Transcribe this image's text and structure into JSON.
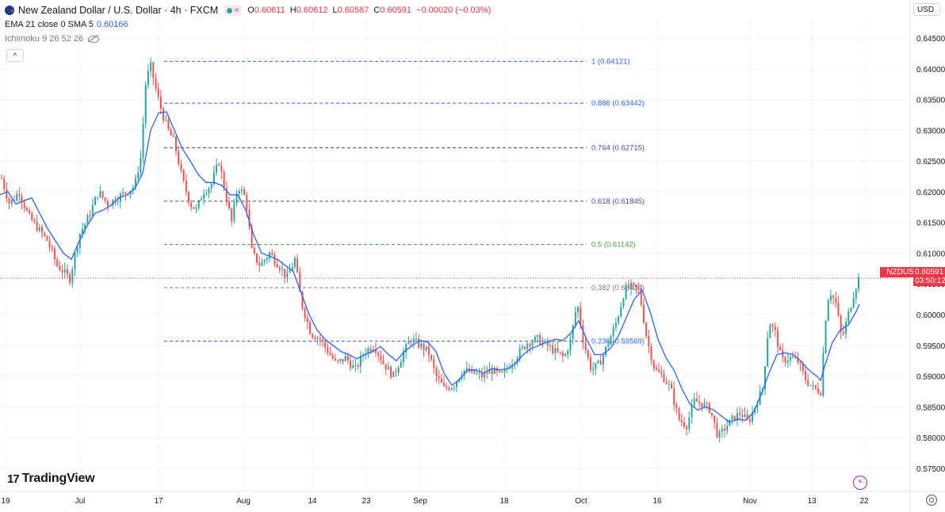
{
  "header": {
    "title": "New Zealand Dollar / U.S. Dollar · 4h · FXCM",
    "approx_icon": "≈",
    "ohlc": [
      {
        "label": "O",
        "value": "0.60611"
      },
      {
        "label": "H",
        "value": "0.60612"
      },
      {
        "label": "L",
        "value": "0.60587"
      },
      {
        "label": "C",
        "value": "0.60591"
      },
      {
        "label": "",
        "value": "−0.00020 (−0.03%)"
      }
    ]
  },
  "indicators": {
    "ema_label": "EMA 21 close 0 SMA 5",
    "ema_value": "0.60166",
    "ichimoku_label": "Ichimoku 9 26 52 26"
  },
  "currency_button": "USD",
  "symbol_tag": "NZDUSD",
  "last_price": "0.60591",
  "countdown": "03:50:12",
  "brand": "TradingView",
  "colors": {
    "up": "#26a69a",
    "down": "#ef5350",
    "ema": "#2962ff",
    "fib_blue": "#2962ff",
    "fib_purple": "#5b3e9e",
    "fib_green": "#43a047",
    "fib_grey": "#787b86",
    "price_line": "#f23645"
  },
  "chart_data": {
    "type": "candlestick",
    "title": "New Zealand Dollar / U.S. Dollar · 4h · FXCM",
    "y_ticks": [
      "0.64500",
      "0.64000",
      "0.63500",
      "0.63000",
      "0.62500",
      "0.62000",
      "0.61500",
      "0.61000",
      "0.60500",
      "0.60000",
      "0.59500",
      "0.59000",
      "0.58500",
      "0.58000",
      "0.57500"
    ],
    "ylim": [
      0.5715,
      0.6481
    ],
    "x_ticks": [
      "19",
      "Jul",
      "17",
      "Aug",
      "14",
      "23",
      "Sep",
      "18",
      "Oct",
      "16",
      "Nov",
      "13",
      "22"
    ],
    "fib_levels": [
      {
        "label": "1 (0.64121)",
        "price": 0.64121,
        "color": "fib_blue"
      },
      {
        "label": "0.886 (0.63442)",
        "price": 0.63442,
        "color": "fib_blue"
      },
      {
        "label": "0.764 (0.62715)",
        "price": 0.62715,
        "color": "fib_purple"
      },
      {
        "label": "0.618 (0.61845)",
        "price": 0.61845,
        "color": "fib_purple"
      },
      {
        "label": "0.5 (0.61142)",
        "price": 0.61142,
        "color": "fib_green"
      },
      {
        "label": "0.382 (0.60439)",
        "price": 0.60439,
        "color": "fib_grey"
      },
      {
        "label": "0.236 (0.59569)",
        "price": 0.59569,
        "color": "fib_blue"
      }
    ],
    "ema_series": {
      "name": "EMA 21",
      "points": [
        [
          0,
          0.6195
        ],
        [
          10,
          0.62
        ],
        [
          20,
          0.618
        ],
        [
          30,
          0.6185
        ],
        [
          40,
          0.619
        ],
        [
          50,
          0.6165
        ],
        [
          60,
          0.614
        ],
        [
          70,
          0.612
        ],
        [
          80,
          0.61
        ],
        [
          90,
          0.609
        ],
        [
          100,
          0.612
        ],
        [
          110,
          0.6145
        ],
        [
          120,
          0.6165
        ],
        [
          130,
          0.617
        ],
        [
          140,
          0.6178
        ],
        [
          150,
          0.619
        ],
        [
          160,
          0.6195
        ],
        [
          170,
          0.6205
        ],
        [
          180,
          0.623
        ],
        [
          190,
          0.63
        ],
        [
          200,
          0.6328
        ],
        [
          210,
          0.633
        ],
        [
          220,
          0.63
        ],
        [
          230,
          0.627
        ],
        [
          240,
          0.625
        ],
        [
          250,
          0.6228
        ],
        [
          260,
          0.6215
        ],
        [
          270,
          0.6215
        ],
        [
          280,
          0.621
        ],
        [
          290,
          0.6195
        ],
        [
          300,
          0.6195
        ],
        [
          310,
          0.617
        ],
        [
          320,
          0.613
        ],
        [
          330,
          0.61
        ],
        [
          340,
          0.6095
        ],
        [
          350,
          0.609
        ],
        [
          360,
          0.608
        ],
        [
          370,
          0.607
        ],
        [
          380,
          0.6035
        ],
        [
          390,
          0.6
        ],
        [
          400,
          0.5975
        ],
        [
          410,
          0.596
        ],
        [
          420,
          0.595
        ],
        [
          430,
          0.594
        ],
        [
          440,
          0.5935
        ],
        [
          450,
          0.5928
        ],
        [
          460,
          0.5935
        ],
        [
          470,
          0.594
        ],
        [
          480,
          0.5948
        ],
        [
          490,
          0.5935
        ],
        [
          500,
          0.5925
        ],
        [
          510,
          0.594
        ],
        [
          520,
          0.595
        ],
        [
          530,
          0.5958
        ],
        [
          540,
          0.5955
        ],
        [
          550,
          0.594
        ],
        [
          560,
          0.5905
        ],
        [
          570,
          0.5885
        ],
        [
          580,
          0.5895
        ],
        [
          590,
          0.591
        ],
        [
          600,
          0.591
        ],
        [
          610,
          0.5905
        ],
        [
          620,
          0.5912
        ],
        [
          630,
          0.591
        ],
        [
          640,
          0.5912
        ],
        [
          650,
          0.592
        ],
        [
          660,
          0.5935
        ],
        [
          670,
          0.5945
        ],
        [
          680,
          0.595
        ],
        [
          690,
          0.5955
        ],
        [
          700,
          0.596
        ],
        [
          710,
          0.5958
        ],
        [
          720,
          0.597
        ],
        [
          730,
          0.599
        ],
        [
          740,
          0.596
        ],
        [
          750,
          0.5935
        ],
        [
          760,
          0.5935
        ],
        [
          770,
          0.5945
        ],
        [
          780,
          0.5965
        ],
        [
          790,
          0.5995
        ],
        [
          800,
          0.6025
        ],
        [
          810,
          0.604
        ],
        [
          820,
          0.6005
        ],
        [
          830,
          0.596
        ],
        [
          840,
          0.593
        ],
        [
          850,
          0.591
        ],
        [
          860,
          0.588
        ],
        [
          870,
          0.5855
        ],
        [
          880,
          0.5845
        ],
        [
          890,
          0.585
        ],
        [
          900,
          0.5845
        ],
        [
          910,
          0.5835
        ],
        [
          920,
          0.5825
        ],
        [
          930,
          0.583
        ],
        [
          940,
          0.5828
        ],
        [
          950,
          0.584
        ],
        [
          960,
          0.587
        ],
        [
          970,
          0.5905
        ],
        [
          980,
          0.5935
        ],
        [
          990,
          0.5938
        ],
        [
          1000,
          0.5935
        ],
        [
          1010,
          0.5925
        ],
        [
          1020,
          0.591
        ],
        [
          1030,
          0.59
        ],
        [
          1035,
          0.5893
        ],
        [
          1040,
          0.5915
        ],
        [
          1050,
          0.5955
        ],
        [
          1060,
          0.5975
        ],
        [
          1070,
          0.5983
        ],
        [
          1080,
          0.6005
        ],
        [
          1084,
          0.6017
        ]
      ]
    },
    "candles": {
      "count": 340,
      "anchors": [
        [
          0,
          0.623
        ],
        [
          12,
          0.618
        ],
        [
          24,
          0.62
        ],
        [
          36,
          0.616
        ],
        [
          48,
          0.614
        ],
        [
          60,
          0.612
        ],
        [
          72,
          0.608
        ],
        [
          80,
          0.607
        ],
        [
          88,
          0.6058
        ],
        [
          100,
          0.613
        ],
        [
          112,
          0.616
        ],
        [
          124,
          0.62
        ],
        [
          136,
          0.618
        ],
        [
          148,
          0.619
        ],
        [
          160,
          0.62
        ],
        [
          170,
          0.621
        ],
        [
          178,
          0.626
        ],
        [
          184,
          0.638
        ],
        [
          190,
          0.6405
        ],
        [
          196,
          0.637
        ],
        [
          204,
          0.633
        ],
        [
          212,
          0.63
        ],
        [
          220,
          0.628
        ],
        [
          230,
          0.622
        ],
        [
          240,
          0.618
        ],
        [
          248,
          0.617
        ],
        [
          256,
          0.62
        ],
        [
          266,
          0.621
        ],
        [
          276,
          0.625
        ],
        [
          284,
          0.62
        ],
        [
          292,
          0.615
        ],
        [
          300,
          0.621
        ],
        [
          310,
          0.619
        ],
        [
          318,
          0.61
        ],
        [
          328,
          0.608
        ],
        [
          340,
          0.61
        ],
        [
          352,
          0.608
        ],
        [
          362,
          0.606
        ],
        [
          372,
          0.609
        ],
        [
          380,
          0.602
        ],
        [
          392,
          0.597
        ],
        [
          404,
          0.596
        ],
        [
          414,
          0.594
        ],
        [
          424,
          0.592
        ],
        [
          436,
          0.593
        ],
        [
          448,
          0.591
        ],
        [
          460,
          0.594
        ],
        [
          472,
          0.595
        ],
        [
          484,
          0.592
        ],
        [
          496,
          0.59
        ],
        [
          508,
          0.5935
        ],
        [
          518,
          0.596
        ],
        [
          530,
          0.595
        ],
        [
          540,
          0.594
        ],
        [
          550,
          0.59
        ],
        [
          560,
          0.588
        ],
        [
          572,
          0.5885
        ],
        [
          584,
          0.591
        ],
        [
          596,
          0.5905
        ],
        [
          608,
          0.59
        ],
        [
          620,
          0.591
        ],
        [
          632,
          0.59
        ],
        [
          644,
          0.592
        ],
        [
          656,
          0.594
        ],
        [
          666,
          0.5955
        ],
        [
          678,
          0.596
        ],
        [
          690,
          0.595
        ],
        [
          700,
          0.594
        ],
        [
          712,
          0.593
        ],
        [
          720,
          0.596
        ],
        [
          728,
          0.602
        ],
        [
          736,
          0.5955
        ],
        [
          746,
          0.591
        ],
        [
          756,
          0.592
        ],
        [
          766,
          0.595
        ],
        [
          778,
          0.599
        ],
        [
          788,
          0.604
        ],
        [
          796,
          0.6045
        ],
        [
          806,
          0.604
        ],
        [
          816,
          0.596
        ],
        [
          826,
          0.591
        ],
        [
          836,
          0.59
        ],
        [
          846,
          0.588
        ],
        [
          856,
          0.583
        ],
        [
          866,
          0.582
        ],
        [
          876,
          0.586
        ],
        [
          886,
          0.5855
        ],
        [
          896,
          0.5845
        ],
        [
          906,
          0.58
        ],
        [
          914,
          0.5815
        ],
        [
          924,
          0.583
        ],
        [
          934,
          0.584
        ],
        [
          944,
          0.5825
        ],
        [
          952,
          0.585
        ],
        [
          962,
          0.588
        ],
        [
          970,
          0.599
        ],
        [
          978,
          0.597
        ],
        [
          986,
          0.5925
        ],
        [
          996,
          0.593
        ],
        [
          1006,
          0.5925
        ],
        [
          1016,
          0.5895
        ],
        [
          1026,
          0.588
        ],
        [
          1036,
          0.5875
        ],
        [
          1040,
          0.598
        ],
        [
          1046,
          0.604
        ],
        [
          1054,
          0.602
        ],
        [
          1062,
          0.596
        ],
        [
          1070,
          0.6
        ],
        [
          1078,
          0.604
        ],
        [
          1083,
          0.6059
        ]
      ]
    }
  }
}
